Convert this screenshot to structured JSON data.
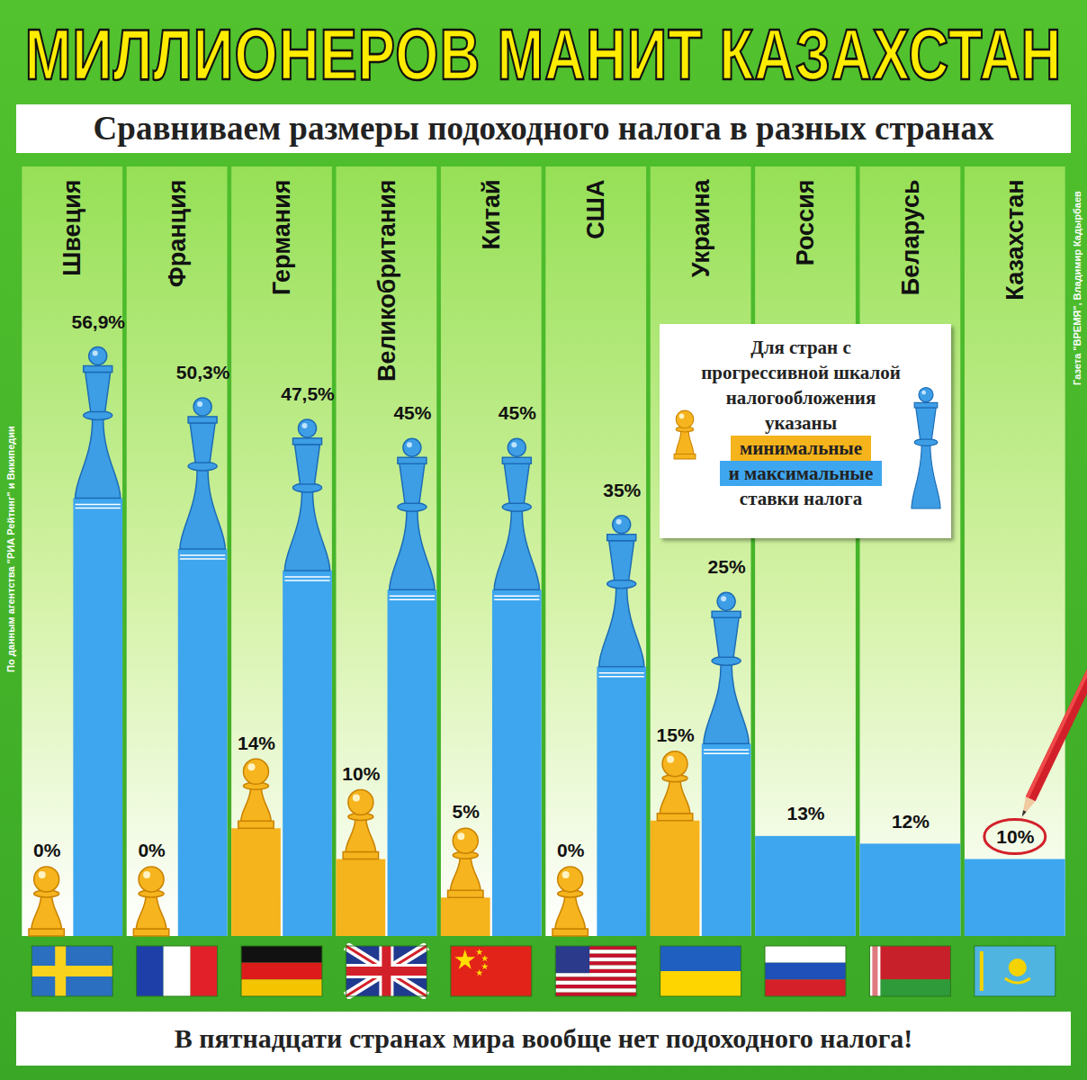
{
  "chart_data": {
    "type": "bar",
    "title": "МИЛЛИОНЕРОВ МАНИТ КАЗАХСТАН",
    "subtitle": "Сравниваем размеры подоходного налога в разных странах",
    "categories": [
      "Швеция",
      "Франция",
      "Германия",
      "Великобритания",
      "Китай",
      "США",
      "Украина",
      "Россия",
      "Беларусь",
      "Казахстан"
    ],
    "series": [
      {
        "name": "минимальные",
        "color": "#f5b31c",
        "values": [
          0,
          0,
          14,
          10,
          5,
          0,
          15,
          null,
          null,
          null
        ],
        "value_labels": [
          "0%",
          "0%",
          "14%",
          "10%",
          "5%",
          "0%",
          "15%",
          null,
          null,
          null
        ]
      },
      {
        "name": "и максимальные",
        "color": "#3ea6ee",
        "values": [
          56.9,
          50.3,
          47.5,
          45,
          45,
          35,
          25,
          13,
          12,
          10
        ],
        "value_labels": [
          "56,9%",
          "50,3%",
          "47,5%",
          "45%",
          "45%",
          "35%",
          "25%",
          "13%",
          "12%",
          "10%"
        ]
      }
    ],
    "ylim": [
      0,
      100
    ],
    "yticks": [],
    "data_labels": true,
    "tick_labels": "x",
    "legend": "top-right",
    "legend_title": "Для стран с прогрессивной шкалой налогообложения указаны",
    "legend_note": "ставки налога",
    "source": "По данным агентства \"РИА Рейтинг\" и Википедии",
    "credit": "Газета \"ВРЕМЯ\", Владимир Кадырбаев",
    "footnote": "В пятнадцати странах мира вообще нет подоходного налога!"
  }
}
